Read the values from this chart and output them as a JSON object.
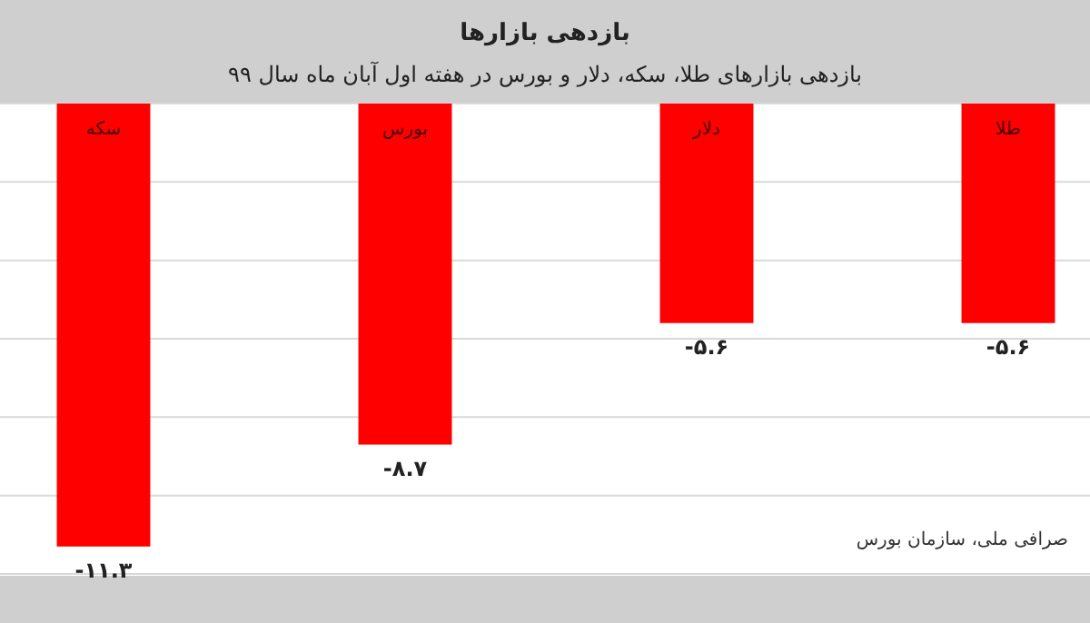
{
  "chart_data": {
    "type": "bar",
    "title": "بازدهی بازارها",
    "subtitle": "بازدهی بازارهای طلا، سکه، دلار و بورس در هفته اول آبان ماه سال ۹۹",
    "categories": [
      "سکه",
      "بورس",
      "دلار",
      "طلا"
    ],
    "values": [
      -11.3,
      -8.7,
      -5.6,
      -5.6
    ],
    "value_labels": [
      "-۱۱.۳",
      "-۸.۷",
      "-۵.۶",
      "-۵.۶"
    ],
    "color": "#ff0000",
    "ylim": [
      -12,
      0
    ],
    "yticks": [
      {
        "value": 0,
        "label": null
      },
      {
        "value": -2,
        "label": null
      },
      {
        "value": -4,
        "label": null
      },
      {
        "value": -6,
        "label": null
      },
      {
        "value": -8,
        "label": null
      },
      {
        "value": -10,
        "label": null
      },
      {
        "value": -12,
        "label": null
      }
    ],
    "grid": "y",
    "annotations": [
      "صرافی ملی، سازمان بورس"
    ]
  }
}
